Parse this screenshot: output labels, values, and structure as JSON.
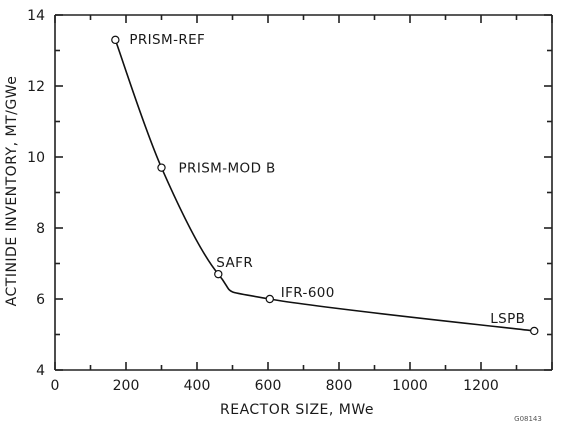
{
  "chart_data": {
    "type": "line",
    "title": "",
    "xlabel": "REACTOR SIZE, MWe",
    "ylabel": "ACTINIDE INVENTORY, MT/GWe",
    "xlim": [
      0,
      1400
    ],
    "ylim": [
      4,
      14
    ],
    "x_ticks": [
      0,
      200,
      400,
      600,
      800,
      1000,
      1200
    ],
    "y_ticks": [
      4,
      6,
      8,
      10,
      12,
      14
    ],
    "grid": false,
    "legend": "none",
    "series": [
      {
        "points": [
          {
            "x": 170,
            "y": 13.3,
            "label": "PRISM-REF"
          },
          {
            "x": 300,
            "y": 9.7,
            "label": "PRISM-MOD B"
          },
          {
            "x": 460,
            "y": 6.7,
            "label": "SAFR"
          },
          {
            "x": 605,
            "y": 6.0,
            "label": "IFR-600"
          },
          {
            "x": 1350,
            "y": 5.1,
            "label": "LSPB"
          }
        ]
      }
    ],
    "figure_id": "G08143"
  }
}
